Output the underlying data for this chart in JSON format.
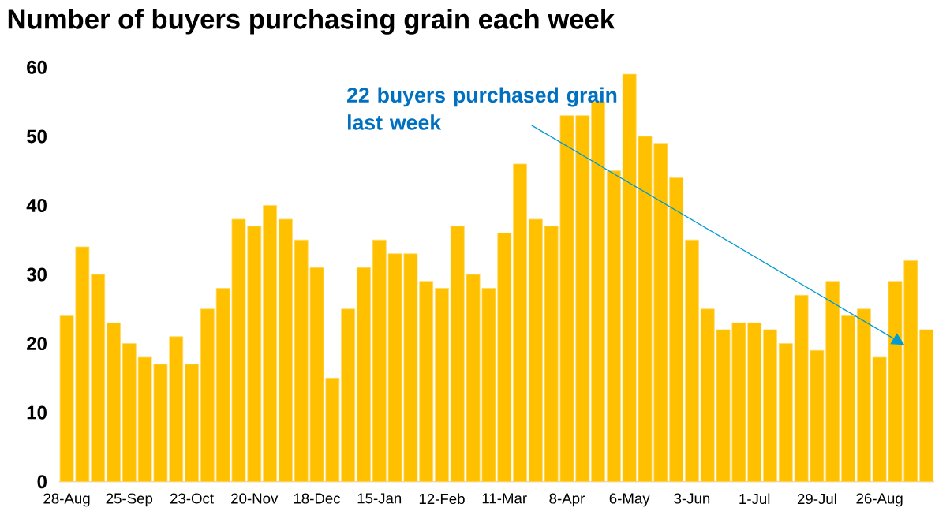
{
  "chart_data": {
    "type": "bar",
    "title": "Number of buyers purchasing grain each week",
    "categories": [
      "28-Aug",
      null,
      null,
      null,
      "25-Sep",
      null,
      null,
      null,
      "23-Oct",
      null,
      null,
      null,
      "20-Nov",
      null,
      null,
      null,
      "18-Dec",
      null,
      null,
      null,
      "15-Jan",
      null,
      null,
      null,
      "12-Feb",
      null,
      null,
      null,
      "11-Mar",
      null,
      null,
      null,
      "8-Apr",
      null,
      null,
      null,
      "6-May",
      null,
      null,
      null,
      "3-Jun",
      null,
      null,
      null,
      "1-Jul",
      null,
      null,
      null,
      "29-Jul",
      null,
      null,
      null,
      "26-Aug",
      null,
      null,
      null
    ],
    "values": [
      24,
      34,
      30,
      23,
      20,
      18,
      17,
      21,
      17,
      25,
      28,
      38,
      37,
      40,
      38,
      35,
      31,
      15,
      25,
      31,
      35,
      33,
      33,
      29,
      28,
      37,
      30,
      28,
      36,
      46,
      38,
      37,
      53,
      53,
      55,
      45,
      59,
      50,
      49,
      44,
      35,
      25,
      22,
      23,
      23,
      22,
      20,
      27,
      19,
      29,
      24,
      25,
      18,
      29,
      32,
      22
    ],
    "color": "#ffc000",
    "ylim": [
      0,
      60
    ],
    "yticks": [
      0,
      10,
      20,
      30,
      40,
      50,
      60
    ],
    "grid": false,
    "annotations": [
      "22 buyers purchased grain last week"
    ]
  }
}
